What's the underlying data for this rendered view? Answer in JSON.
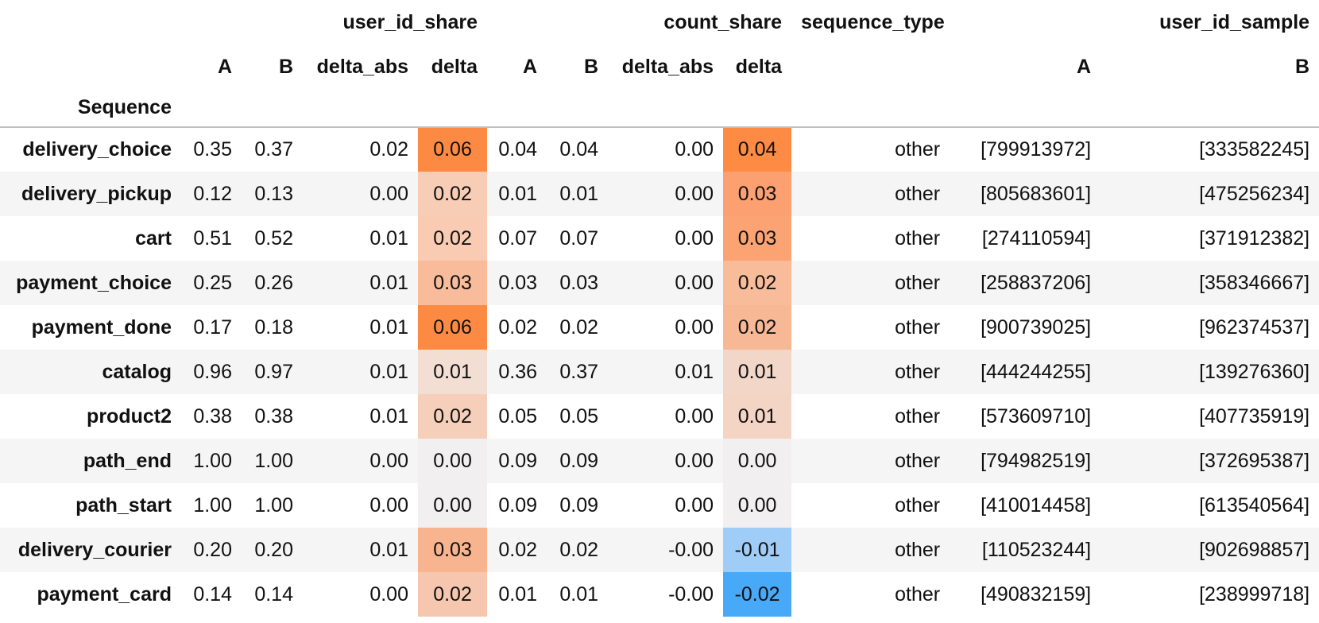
{
  "header": {
    "groups": [
      "user_id_share",
      "count_share",
      "sequence_type",
      "user_id_sample"
    ],
    "subcolumns": [
      "A",
      "B",
      "delta_abs",
      "delta",
      "A",
      "B",
      "delta_abs",
      "delta",
      "A",
      "B"
    ],
    "index_name": "Sequence"
  },
  "colors": {
    "heat_pos_strong": "#fd8d3c",
    "heat_neg_strong": "#42a5f5",
    "row_stripe": "#f5f5f5",
    "header_rule": "#bdbdbd"
  },
  "rows": [
    {
      "name": "delivery_choice",
      "uA": "0.35",
      "uB": "0.37",
      "uDA": "0.02",
      "uD": "0.06",
      "cA": "0.04",
      "cB": "0.04",
      "cDA": "0.00",
      "cD": "0.04",
      "type": "other",
      "sA": "[799913972]",
      "sB": "[333582245]",
      "uD_bg": "#fd8a43",
      "cD_bg": "#fd8b44"
    },
    {
      "name": "delivery_pickup",
      "uA": "0.12",
      "uB": "0.13",
      "uDA": "0.00",
      "uD": "0.02",
      "cA": "0.01",
      "cB": "0.01",
      "cDA": "0.00",
      "cD": "0.03",
      "type": "other",
      "sA": "[805683601]",
      "sB": "[475256234]",
      "uD_bg": "#f7cdb5",
      "cD_bg": "#fca072"
    },
    {
      "name": "cart",
      "uA": "0.51",
      "uB": "0.52",
      "uDA": "0.01",
      "uD": "0.02",
      "cA": "0.07",
      "cB": "0.07",
      "cDA": "0.00",
      "cD": "0.03",
      "type": "other",
      "sA": "[274110594]",
      "sB": "[371912382]",
      "uD_bg": "#f8cbb2",
      "cD_bg": "#fca374"
    },
    {
      "name": "payment_choice",
      "uA": "0.25",
      "uB": "0.26",
      "uDA": "0.01",
      "uD": "0.03",
      "cA": "0.03",
      "cB": "0.03",
      "cDA": "0.00",
      "cD": "0.02",
      "type": "other",
      "sA": "[258837206]",
      "sB": "[358346667]",
      "uD_bg": "#f8bc9b",
      "cD_bg": "#f8bc9a"
    },
    {
      "name": "payment_done",
      "uA": "0.17",
      "uB": "0.18",
      "uDA": "0.01",
      "uD": "0.06",
      "cA": "0.02",
      "cB": "0.02",
      "cDA": "0.00",
      "cD": "0.02",
      "type": "other",
      "sA": "[900739025]",
      "sB": "[962374537]",
      "uD_bg": "#fd8a43",
      "cD_bg": "#f7b896"
    },
    {
      "name": "catalog",
      "uA": "0.96",
      "uB": "0.97",
      "uDA": "0.01",
      "uD": "0.01",
      "cA": "0.36",
      "cB": "0.37",
      "cDA": "0.01",
      "cD": "0.01",
      "type": "other",
      "sA": "[444244255]",
      "sB": "[139276360]",
      "uD_bg": "#f3ded3",
      "cD_bg": "#f2d6c8"
    },
    {
      "name": "product2",
      "uA": "0.38",
      "uB": "0.38",
      "uDA": "0.01",
      "uD": "0.02",
      "cA": "0.05",
      "cB": "0.05",
      "cDA": "0.00",
      "cD": "0.01",
      "type": "other",
      "sA": "[573609710]",
      "sB": "[407735919]",
      "uD_bg": "#f5cfb9",
      "cD_bg": "#f4d4c4"
    },
    {
      "name": "path_end",
      "uA": "1.00",
      "uB": "1.00",
      "uDA": "0.00",
      "uD": "0.00",
      "cA": "0.09",
      "cB": "0.09",
      "cDA": "0.00",
      "cD": "0.00",
      "type": "other",
      "sA": "[794982519]",
      "sB": "[372695387]",
      "uD_bg": "#f1eff0",
      "cD_bg": "#f1eff0"
    },
    {
      "name": "path_start",
      "uA": "1.00",
      "uB": "1.00",
      "uDA": "0.00",
      "uD": "0.00",
      "cA": "0.09",
      "cB": "0.09",
      "cDA": "0.00",
      "cD": "0.00",
      "type": "other",
      "sA": "[410014458]",
      "sB": "[613540564]",
      "uD_bg": "#f1eff0",
      "cD_bg": "#f1eff0"
    },
    {
      "name": "delivery_courier",
      "uA": "0.20",
      "uB": "0.20",
      "uDA": "0.01",
      "uD": "0.03",
      "cA": "0.02",
      "cB": "0.02",
      "cDA": "-0.00",
      "cD": "-0.01",
      "type": "other",
      "sA": "[110523244]",
      "sB": "[902698857]",
      "uD_bg": "#f7b48e",
      "cD_bg": "#9fcdf7"
    },
    {
      "name": "payment_card",
      "uA": "0.14",
      "uB": "0.14",
      "uDA": "0.00",
      "uD": "0.02",
      "cA": "0.01",
      "cB": "0.01",
      "cDA": "-0.00",
      "cD": "-0.02",
      "type": "other",
      "sA": "[490832159]",
      "sB": "[238999718]",
      "uD_bg": "#f6c7ae",
      "cD_bg": "#47a9f8"
    }
  ]
}
